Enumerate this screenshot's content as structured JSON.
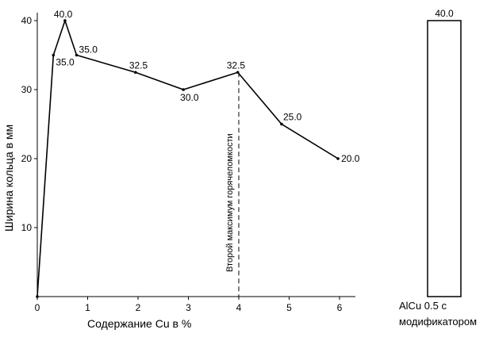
{
  "chart_data": [
    {
      "type": "line",
      "xlabel": "Содержание Cu в  %",
      "ylabel": "Ширина кольца в  мм",
      "xlim": [
        0,
        6.6
      ],
      "ylim": [
        0,
        41
      ],
      "xticks": [
        "0",
        "1",
        "2",
        "3",
        "4",
        "5",
        "6"
      ],
      "yticks": [
        "10",
        "20",
        "30",
        "40"
      ],
      "grid": false,
      "series": [
        {
          "x": [
            0.0,
            0.32,
            0.55,
            0.78,
            1.95,
            2.9,
            3.98,
            4.85,
            5.97
          ],
          "y": [
            0.0,
            35.0,
            40.0,
            35.0,
            32.5,
            30.0,
            32.5,
            25.0,
            20.0
          ],
          "labels": [
            "",
            "35.0",
            "40.0",
            "35.0",
            "32.5",
            "30.0",
            "32.5",
            "25.0",
            "20.0"
          ]
        }
      ],
      "annotation": {
        "x": 4,
        "text": "Второй максимум горячеломкости"
      }
    },
    {
      "type": "bar",
      "categories": [
        "AlCu 0.5 с модификатором"
      ],
      "category_lines": [
        "AlCu 0.5 с",
        "модификатором"
      ],
      "values": [
        40.0
      ],
      "labels": [
        "40.0"
      ],
      "ylim": [
        0,
        41
      ]
    }
  ]
}
